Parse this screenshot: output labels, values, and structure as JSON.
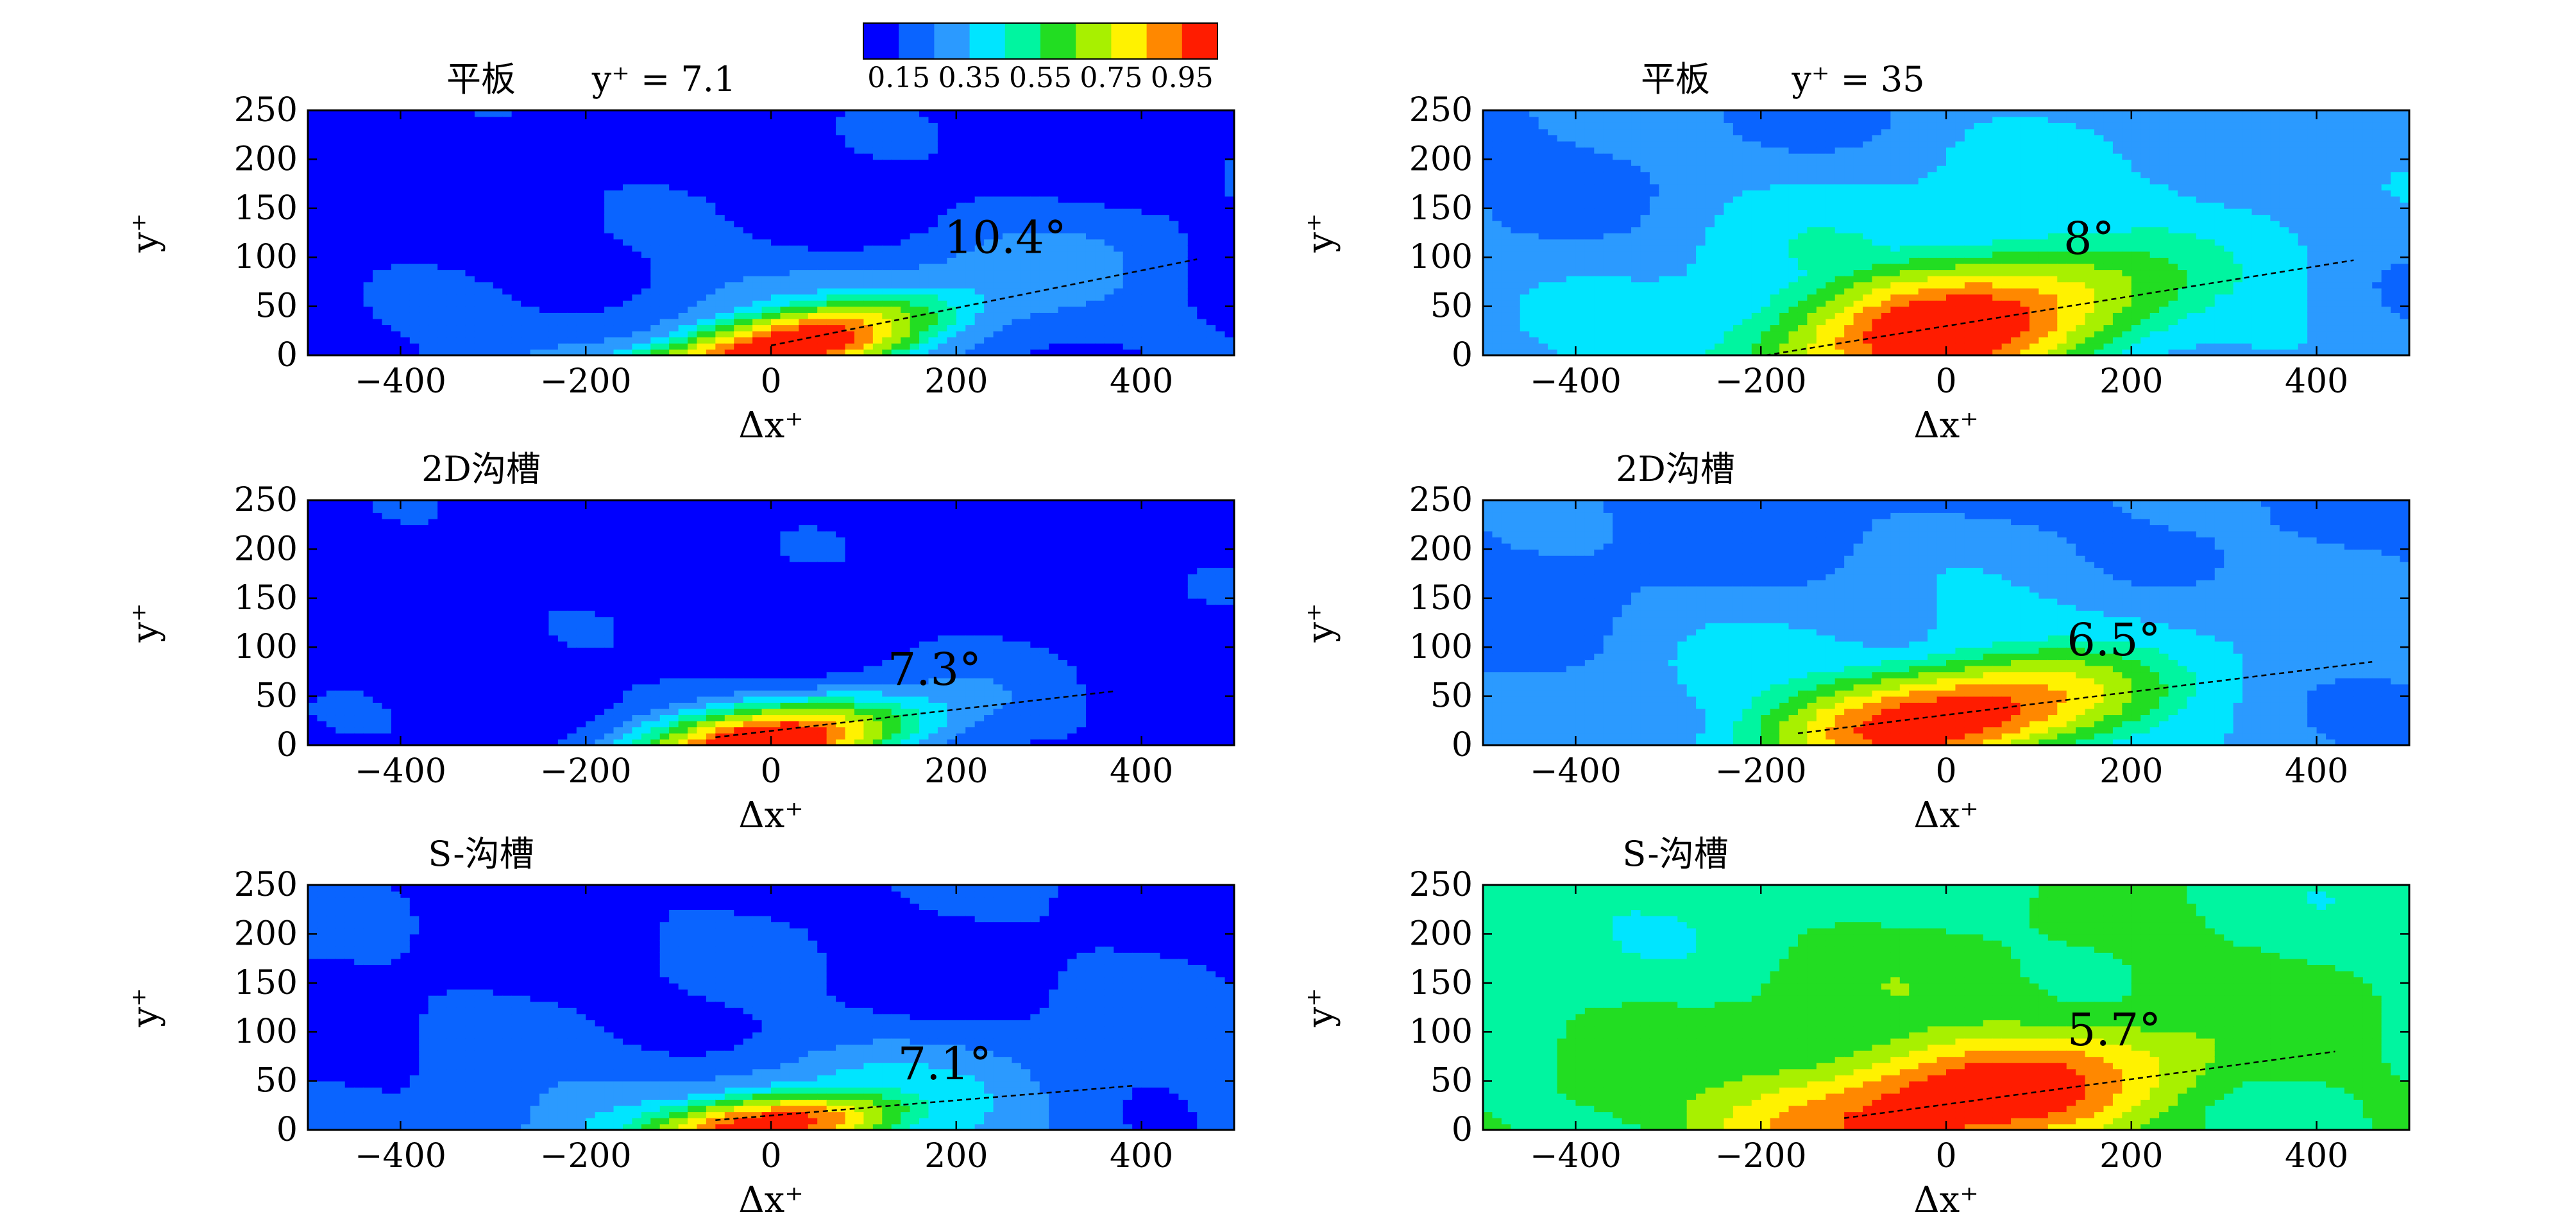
{
  "colorbar": {
    "ticks": [
      "0.15",
      "0.35",
      "0.55",
      "0.75",
      "0.95"
    ],
    "colors": [
      "#0000ff",
      "#0a64ff",
      "#2b9aff",
      "#00e5ff",
      "#00f5a0",
      "#22dd22",
      "#a8f000",
      "#fff200",
      "#ff8800",
      "#ff1c00"
    ]
  },
  "chart_data": [
    {
      "type": "heatmap",
      "title": "平板",
      "annotation_label": "y⁺ = 7.1",
      "xlabel": "Δx⁺",
      "ylabel": "y⁺",
      "xlim": [
        -500,
        500
      ],
      "ylim": [
        0,
        250
      ],
      "xticks": [
        "−400",
        "−200",
        "0",
        "200",
        "400"
      ],
      "yticks": [
        "0",
        "50",
        "100",
        "150",
        "200",
        "250"
      ],
      "angle_label": "10.4°",
      "peak": [
        0,
        5
      ],
      "inclination_line": [
        [
          0,
          10
        ],
        [
          460,
          98
        ]
      ],
      "spread": {
        "sx": 145,
        "sy": 30,
        "tail_x": 260,
        "tail_y": 60,
        "bg": 0.05
      }
    },
    {
      "type": "heatmap",
      "title": "平板",
      "annotation_label": "y⁺ = 35",
      "xlabel": "Δx⁺",
      "ylabel": "y⁺",
      "xlim": [
        -500,
        500
      ],
      "ylim": [
        0,
        250
      ],
      "xticks": [
        "−400",
        "−200",
        "0",
        "200",
        "400"
      ],
      "yticks": [
        "0",
        "50",
        "100",
        "150",
        "200",
        "250"
      ],
      "angle_label": "8°",
      "peak": [
        0,
        30
      ],
      "inclination_line": [
        [
          -195,
          0
        ],
        [
          440,
          97
        ]
      ],
      "spread": {
        "sx": 170,
        "sy": 55,
        "tail_x": 300,
        "tail_y": 120,
        "bg": 0.18
      }
    },
    {
      "type": "heatmap",
      "title": "2D沟槽",
      "xlabel": "Δx⁺",
      "ylabel": "y⁺",
      "xlim": [
        -500,
        500
      ],
      "ylim": [
        0,
        250
      ],
      "xticks": [
        "−400",
        "−200",
        "0",
        "200",
        "400"
      ],
      "yticks": [
        "0",
        "50",
        "100",
        "150",
        "200",
        "250"
      ],
      "angle_label": "7.3°",
      "peak": [
        0,
        5
      ],
      "inclination_line": [
        [
          -60,
          8
        ],
        [
          370,
          55
        ]
      ],
      "spread": {
        "sx": 120,
        "sy": 28,
        "tail_x": 180,
        "tail_y": 40,
        "bg": 0.04
      }
    },
    {
      "type": "heatmap",
      "title": "2D沟槽",
      "xlabel": "Δx⁺",
      "ylabel": "y⁺",
      "xlim": [
        -500,
        500
      ],
      "ylim": [
        0,
        250
      ],
      "xticks": [
        "−400",
        "−200",
        "0",
        "200",
        "400"
      ],
      "yticks": [
        "0",
        "50",
        "100",
        "150",
        "200",
        "250"
      ],
      "angle_label": "6.5°",
      "peak": [
        0,
        30
      ],
      "inclination_line": [
        [
          -160,
          12
        ],
        [
          460,
          85
        ]
      ],
      "spread": {
        "sx": 160,
        "sy": 45,
        "tail_x": 280,
        "tail_y": 90,
        "bg": 0.16
      }
    },
    {
      "type": "heatmap",
      "title": "S-沟槽",
      "xlabel": "Δx⁺",
      "ylabel": "y⁺",
      "xlim": [
        -500,
        500
      ],
      "ylim": [
        0,
        250
      ],
      "xticks": [
        "−400",
        "−200",
        "0",
        "200",
        "400"
      ],
      "yticks": [
        "0",
        "50",
        "100",
        "150",
        "200",
        "250"
      ],
      "angle_label": "7.1°",
      "peak": [
        0,
        5
      ],
      "inclination_line": [
        [
          -60,
          10
        ],
        [
          390,
          45
        ]
      ],
      "spread": {
        "sx": 110,
        "sy": 26,
        "tail_x": 240,
        "tail_y": 50,
        "bg": 0.08
      }
    },
    {
      "type": "heatmap",
      "title": "S-沟槽",
      "xlabel": "Δx⁺",
      "ylabel": "y⁺",
      "xlim": [
        -500,
        500
      ],
      "ylim": [
        0,
        250
      ],
      "xticks": [
        "−400",
        "−200",
        "0",
        "200",
        "400"
      ],
      "yticks": [
        "0",
        "50",
        "100",
        "150",
        "200",
        "250"
      ],
      "angle_label": "5.7°",
      "peak": [
        0,
        30
      ],
      "inclination_line": [
        [
          -110,
          12
        ],
        [
          420,
          80
        ]
      ],
      "spread": {
        "sx": 200,
        "sy": 50,
        "tail_x": 380,
        "tail_y": 140,
        "bg": 0.4
      }
    }
  ]
}
